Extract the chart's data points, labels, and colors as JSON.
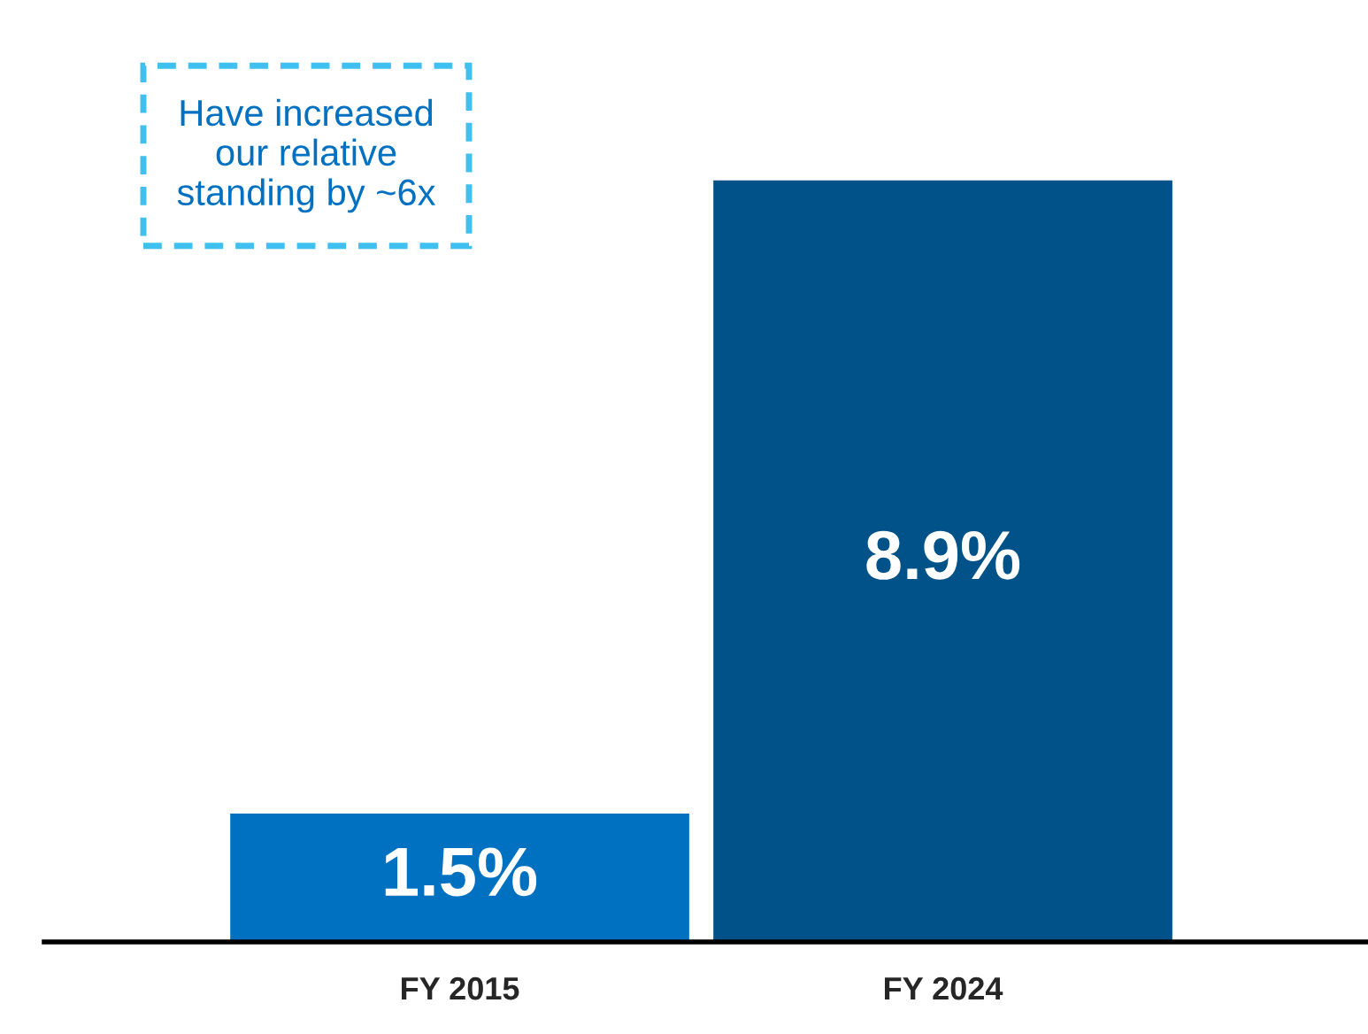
{
  "chart_data": {
    "type": "bar",
    "categories": [
      "FY 2015",
      "FY 2024"
    ],
    "values": [
      1.5,
      8.9
    ],
    "colors": [
      "#0070c0",
      "#005288"
    ],
    "value_labels": [
      "1.5%",
      "8.9%"
    ],
    "annotations": [
      "Have increased our relative standing by ~6x"
    ],
    "grid": false,
    "legend": false
  }
}
